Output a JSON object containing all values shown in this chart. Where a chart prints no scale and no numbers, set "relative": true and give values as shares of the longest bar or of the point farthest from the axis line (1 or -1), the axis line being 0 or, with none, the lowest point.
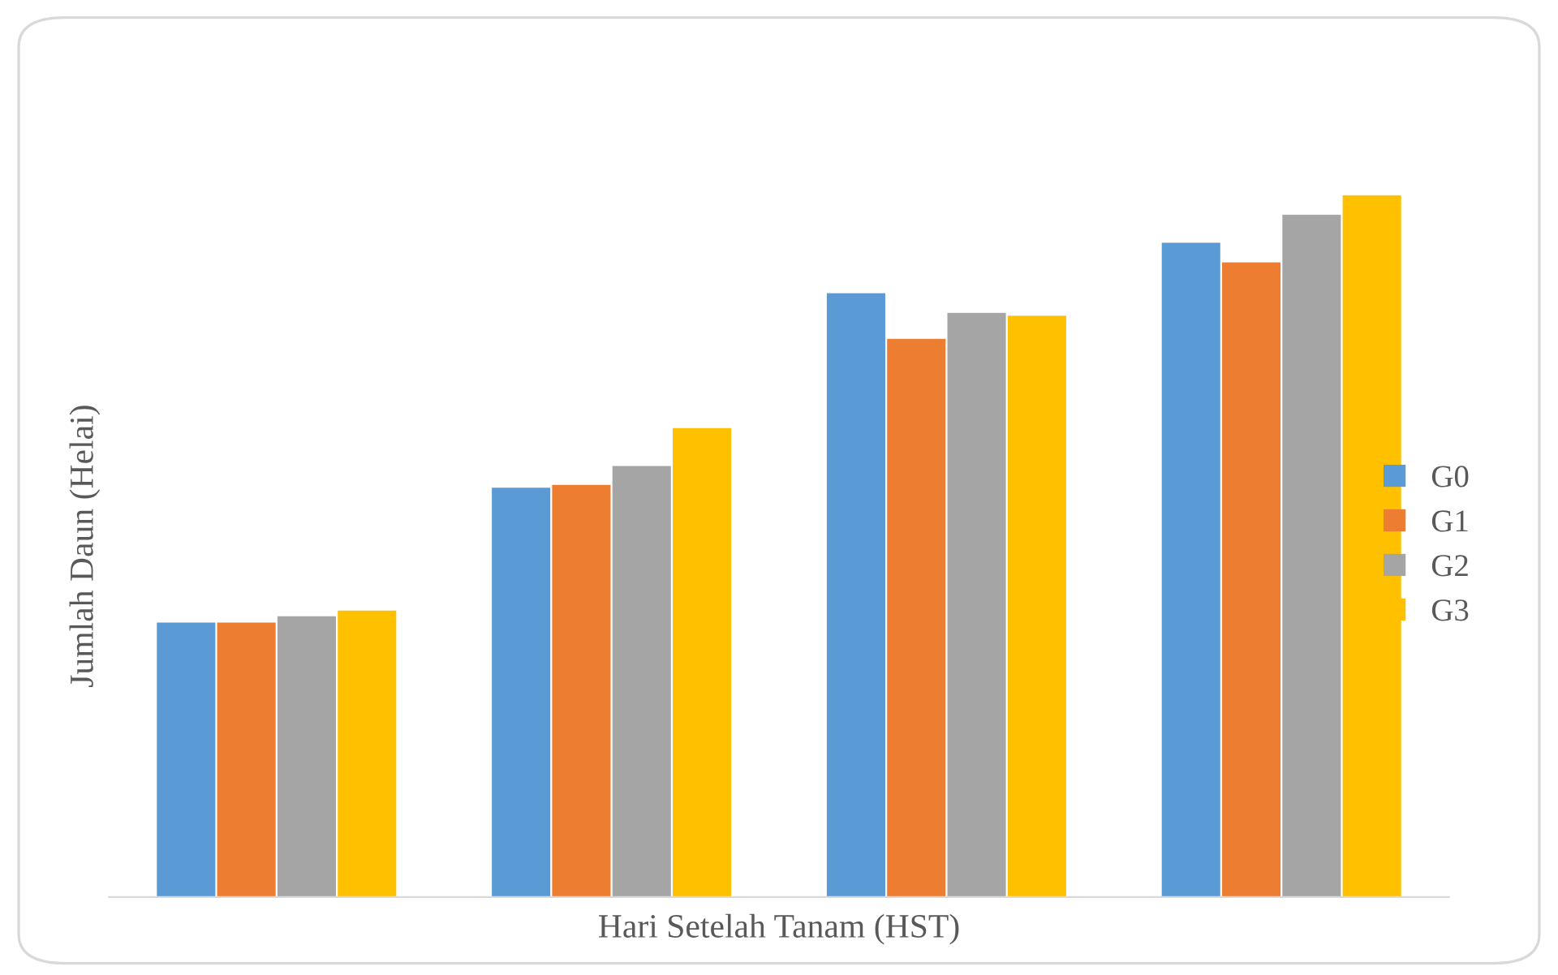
{
  "chart_data": {
    "type": "bar",
    "relative": true,
    "xlabel": "Hari Setelah Tanam (HST)",
    "ylabel": "Jumlah Daun (Helai)",
    "categories": [
      null,
      null,
      null,
      null
    ],
    "legend": "right",
    "grid": false,
    "series": [
      {
        "name": "G0",
        "color": "#5b9bd5",
        "values": [
          0.391,
          0.583,
          0.86,
          0.932
        ]
      },
      {
        "name": "G1",
        "color": "#ed7d31",
        "values": [
          0.391,
          0.587,
          0.795,
          0.904
        ]
      },
      {
        "name": "G2",
        "color": "#a5a5a5",
        "values": [
          0.4,
          0.614,
          0.832,
          0.972
        ]
      },
      {
        "name": "G3",
        "color": "#ffc000",
        "values": [
          0.408,
          0.668,
          0.828,
          1.0
        ]
      }
    ]
  }
}
